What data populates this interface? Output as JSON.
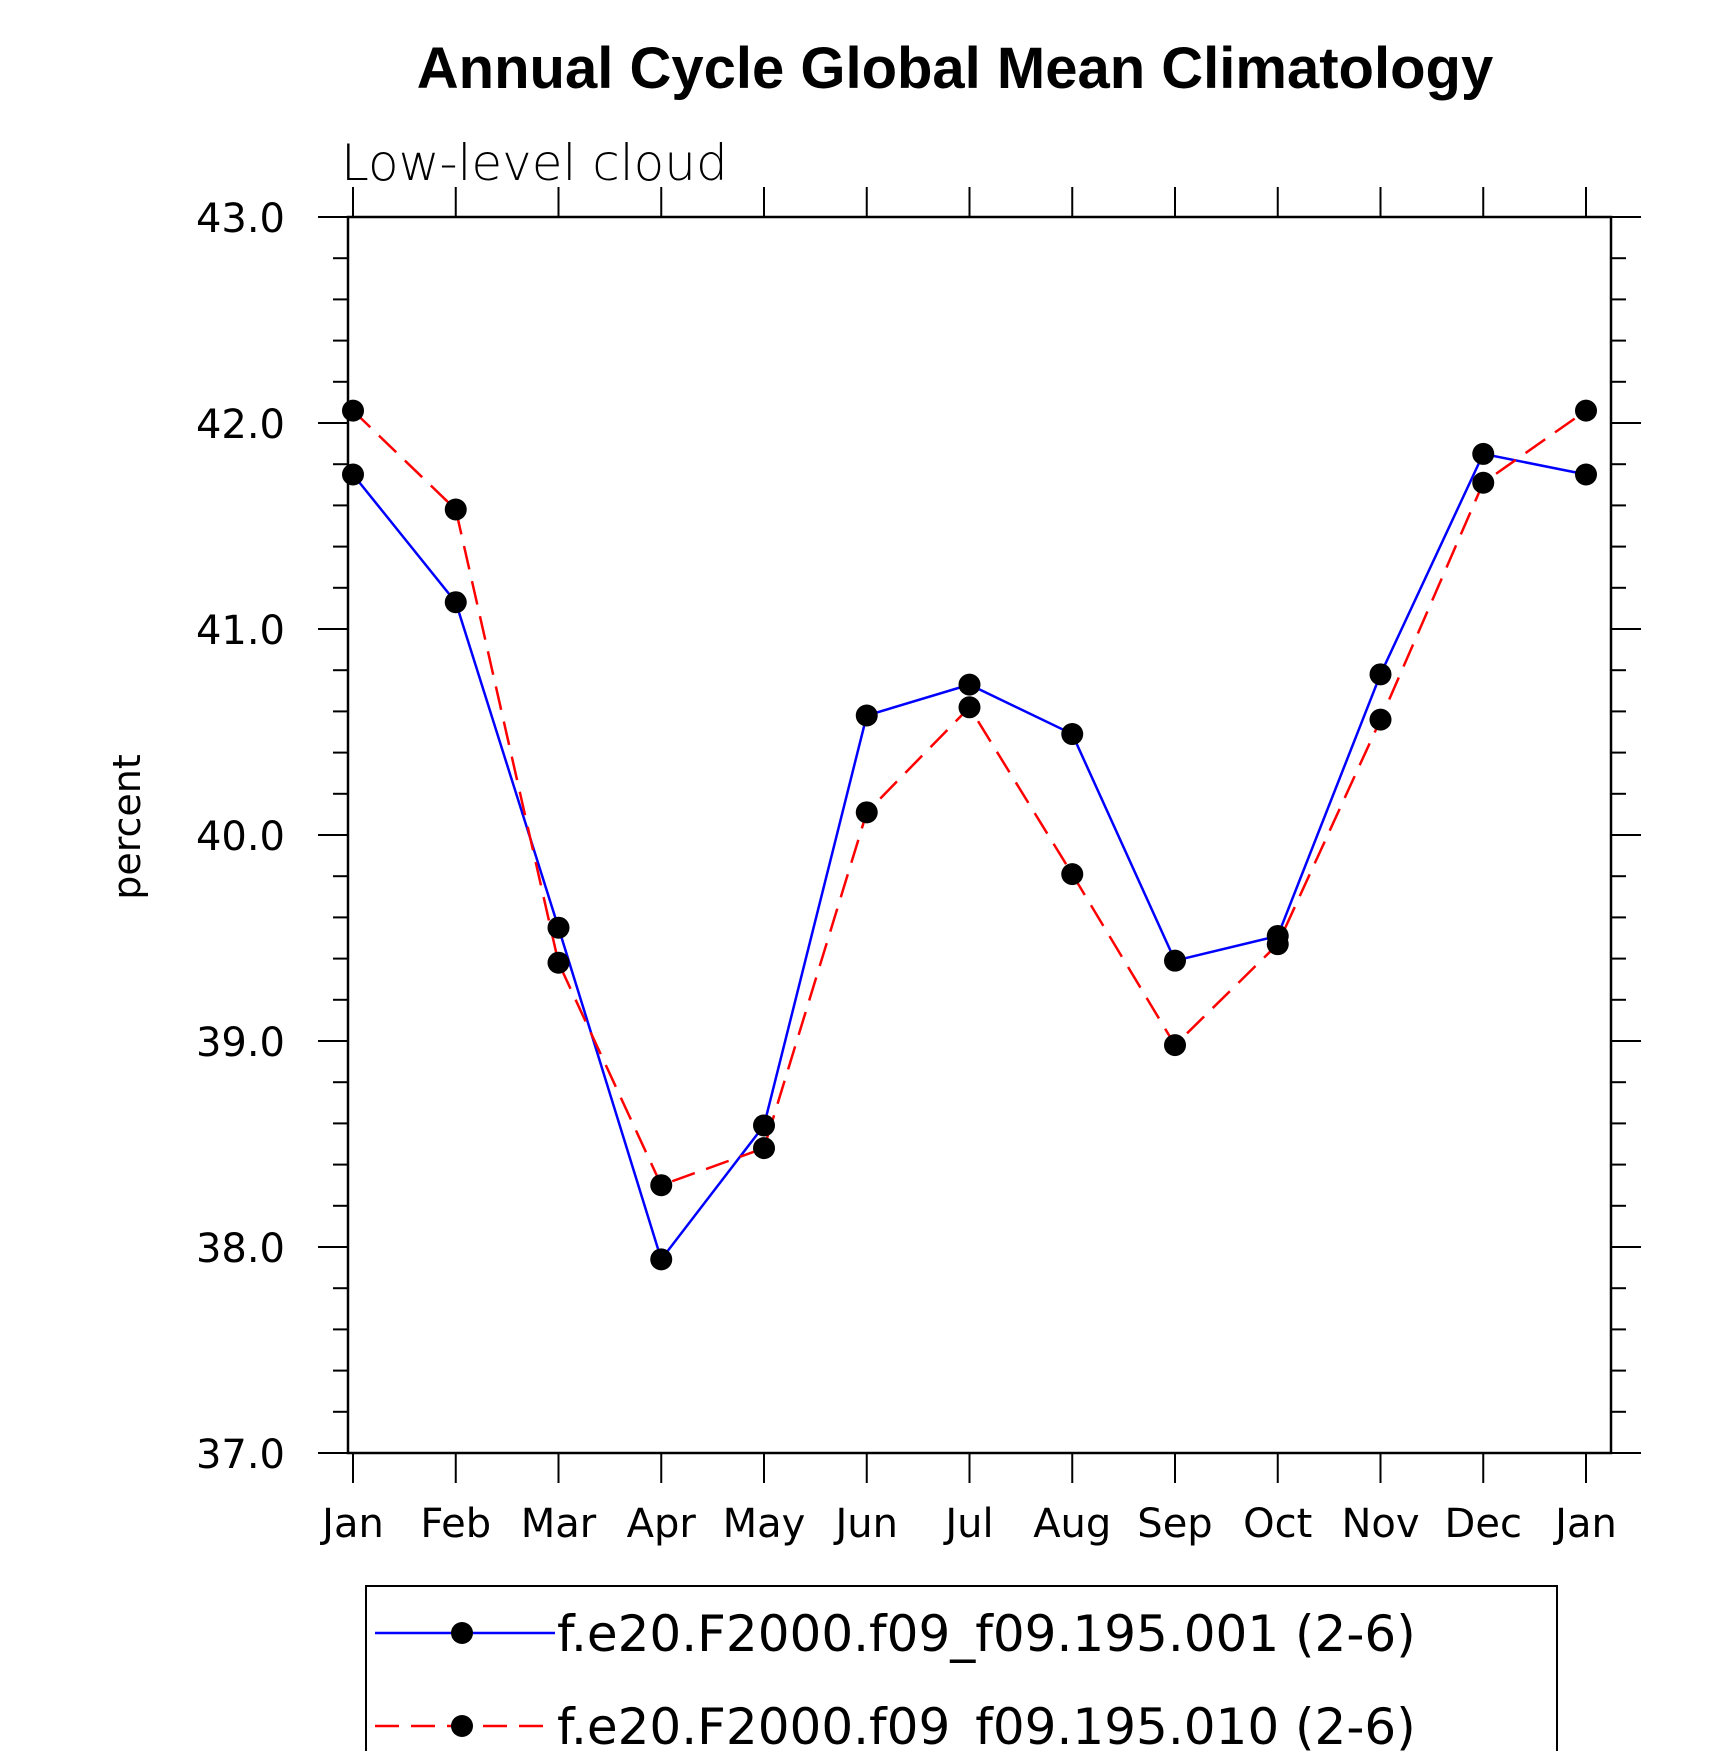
{
  "chart_data": {
    "type": "line",
    "title": "Annual Cycle Global Mean Climatology",
    "subtitle": "Low-level cloud",
    "xlabel": "",
    "ylabel": "percent",
    "categories": [
      "Jan",
      "Feb",
      "Mar",
      "Apr",
      "May",
      "Jun",
      "Jul",
      "Aug",
      "Sep",
      "Oct",
      "Nov",
      "Dec",
      "Jan"
    ],
    "ylim": [
      37.0,
      43.0
    ],
    "yticks": [
      "37.0",
      "38.0",
      "39.0",
      "40.0",
      "41.0",
      "42.0",
      "43.0"
    ],
    "series": [
      {
        "name": "f.e20.F2000.f09_f09.195.001 (2-6)",
        "color": "#0000ff",
        "dash": "solid",
        "values": [
          41.75,
          41.13,
          39.55,
          37.94,
          38.59,
          40.58,
          40.73,
          40.49,
          39.39,
          39.51,
          40.78,
          41.85,
          41.75
        ]
      },
      {
        "name": "f.e20.F2000.f09_f09.195.010 (2-6)",
        "color": "#ff0000",
        "dash": "dashed",
        "values": [
          42.06,
          41.58,
          39.38,
          38.3,
          38.48,
          40.11,
          40.62,
          39.81,
          38.98,
          39.47,
          40.56,
          41.71,
          42.06
        ]
      }
    ],
    "legend_position": "bottom-center"
  }
}
